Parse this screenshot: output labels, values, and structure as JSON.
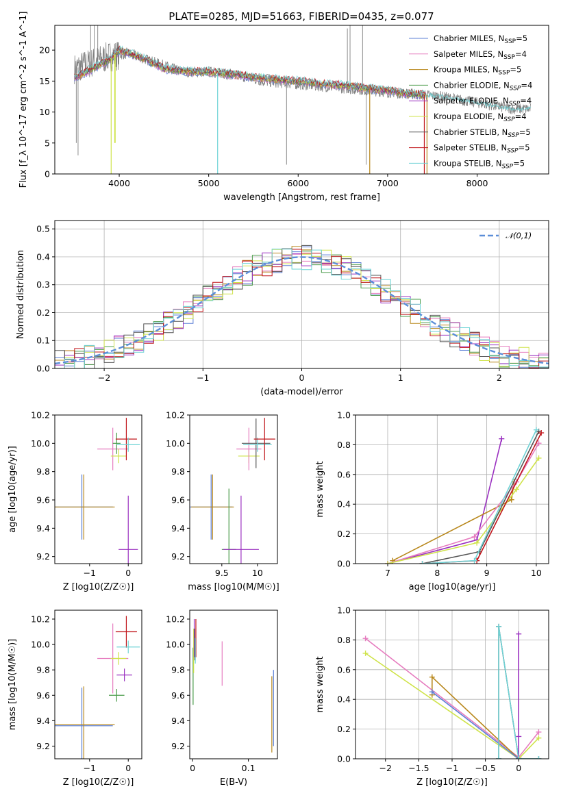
{
  "title": "PLATE=0285, MJD=51663, FIBERID=0435, z=0.077",
  "colors": {
    "Chabrier MILES": "#5b7fd6",
    "Salpeter MILES": "#e67bbf",
    "Kroupa MILES": "#b8871b",
    "Chabrier ELODIE": "#4a9b4a",
    "Salpeter ELODIE": "#9a30c0",
    "Kroupa ELODIE": "#cfe34a",
    "Chabrier STELIB": "#555555",
    "Salpeter STELIB": "#c0141a",
    "Kroupa STELIB": "#6fd3d6",
    "spectrum": "#808080",
    "normal": "#5b8ed8"
  },
  "legend_spectrum": [
    {
      "name": "Chabrier MILES",
      "nssp": "5"
    },
    {
      "name": "Salpeter MILES",
      "nssp": "4"
    },
    {
      "name": "Kroupa MILES",
      "nssp": "5"
    },
    {
      "name": "Chabrier ELODIE",
      "nssp": "4"
    },
    {
      "name": "Salpeter ELODIE",
      "nssp": "4"
    },
    {
      "name": "Kroupa ELODIE",
      "nssp": "4"
    },
    {
      "name": "Chabrier STELIB",
      "nssp": "5"
    },
    {
      "name": "Salpeter STELIB",
      "nssp": "5"
    },
    {
      "name": "Kroupa STELIB",
      "nssp": "5"
    }
  ],
  "chart_data": [
    {
      "id": "spectrum",
      "type": "line",
      "xlabel": "wavelength [Angstrom, rest frame]",
      "ylabel": "Flux [f_λ 10^-17 erg cm^-2 s^-1 A^-1]",
      "xlim": [
        3280,
        8800
      ],
      "ylim": [
        0,
        24
      ],
      "xticks": [
        4000,
        5000,
        6000,
        7000,
        8000
      ],
      "yticks": [
        0,
        5,
        10,
        15,
        20
      ],
      "continuum": {
        "x": [
          3500,
          3700,
          3900,
          4000,
          4100,
          4300,
          4500,
          4800,
          5000,
          5300,
          5600,
          6000,
          6300,
          6600,
          6800,
          7000,
          7200,
          7400
        ],
        "y": [
          15.5,
          17.0,
          18.5,
          20.0,
          19.5,
          18.5,
          17.0,
          16.5,
          16.5,
          16.0,
          15.5,
          15.0,
          14.5,
          14.2,
          13.8,
          13.5,
          13.0,
          12.8
        ]
      },
      "grey_spectrum": {
        "x": [
          3500,
          3700,
          3900,
          4100,
          4400,
          4700,
          5000,
          5300,
          5600,
          6000,
          6400,
          6800,
          7200,
          7600,
          8000,
          8400,
          8600
        ],
        "y": [
          17,
          18,
          19,
          19.5,
          18,
          16.5,
          16.5,
          16,
          15,
          14.5,
          14,
          13.5,
          13,
          12.5,
          11.5,
          10.5,
          10.5
        ]
      },
      "grey_spikes": [
        [
          3520,
          5
        ],
        [
          3540,
          3
        ],
        [
          3680,
          24
        ],
        [
          3720,
          24
        ],
        [
          3760,
          24
        ],
        [
          5870,
          1.5
        ],
        [
          6550,
          23.5
        ],
        [
          6580,
          24
        ],
        [
          6720,
          24
        ],
        [
          6760,
          1.5
        ]
      ],
      "model_dips": [
        [
          3910,
          0
        ],
        [
          3950,
          5
        ],
        [
          3955,
          5
        ],
        [
          5100,
          0
        ],
        [
          6800,
          0
        ],
        [
          7410,
          0
        ],
        [
          7440,
          0
        ]
      ]
    },
    {
      "id": "residual_hist",
      "type": "bar",
      "xlabel": "(data-model)/error",
      "ylabel": "Normed distribution",
      "xlim": [
        -2.5,
        2.5
      ],
      "ylim": [
        0,
        0.53
      ],
      "xticks": [
        -2,
        -1,
        0,
        1,
        2
      ],
      "yticks": [
        0.0,
        0.1,
        0.2,
        0.3,
        0.4,
        0.5
      ],
      "legend": "𝒩(0,1)",
      "bin_width": 0.1
    },
    {
      "id": "age_vs_Z",
      "type": "scatter",
      "xlabel": "Z [log10(Z/Z☉)]",
      "ylabel": "age  [log10(age/yr)]",
      "xlim": [
        -1.9,
        0.35
      ],
      "ylim": [
        9.15,
        10.2
      ],
      "xticks": [
        -1,
        0
      ],
      "yticks": [
        9.2,
        9.4,
        9.6,
        9.8,
        10.0,
        10.2
      ],
      "points": [
        {
          "model": "Chabrier MILES",
          "x": -1.2,
          "y": 9.55,
          "xerr": 1.6,
          "yerr": 0.46
        },
        {
          "model": "Kroupa MILES",
          "x": -1.15,
          "y": 9.55,
          "xerr": 1.6,
          "yerr": 0.46
        },
        {
          "model": "Salpeter MILES",
          "x": -0.4,
          "y": 9.96,
          "xerr": 0.8,
          "yerr": 0.3
        },
        {
          "model": "Kroupa ELODIE",
          "x": -0.25,
          "y": 9.91,
          "xerr": 0.4,
          "yerr": 0.1
        },
        {
          "model": "Chabrier ELODIE",
          "x": -0.3,
          "y": 10.0,
          "xerr": 0.2,
          "yerr": 0.15
        },
        {
          "model": "Salpeter STELIB",
          "x": -0.05,
          "y": 10.03,
          "xerr": 0.55,
          "yerr": 0.3
        },
        {
          "model": "Salpeter ELODIE",
          "x": 0.0,
          "y": 9.25,
          "xerr": 0.5,
          "yerr": 0.76
        },
        {
          "model": "Kroupa STELIB",
          "x": 0.0,
          "y": 9.99,
          "xerr": 0.6,
          "yerr": 0.1
        }
      ]
    },
    {
      "id": "age_vs_mass",
      "type": "scatter",
      "xlabel": "mass [log10(M/M☉)]",
      "ylabel": "",
      "xlim": [
        9.05,
        10.28
      ],
      "ylim": [
        9.15,
        10.2
      ],
      "xticks": [
        9.5,
        10.0
      ],
      "yticks": [
        9.2,
        9.4,
        9.6,
        9.8,
        10.0,
        10.2
      ],
      "points": [
        {
          "model": "Chabrier MILES",
          "x": 9.35,
          "y": 9.55,
          "xerr": 0.6,
          "yerr": 0.46
        },
        {
          "model": "Kroupa MILES",
          "x": 9.37,
          "y": 9.55,
          "xerr": 0.6,
          "yerr": 0.46
        },
        {
          "model": "Chabrier ELODIE",
          "x": 9.6,
          "y": 9.25,
          "xerr": 0.2,
          "yerr": 0.86
        },
        {
          "model": "Salpeter ELODIE",
          "x": 9.77,
          "y": 9.25,
          "xerr": 0.5,
          "yerr": 0.76
        },
        {
          "model": "Kroupa ELODIE",
          "x": 9.88,
          "y": 9.91,
          "xerr": 0.3,
          "yerr": 0.1
        },
        {
          "model": "Salpeter MILES",
          "x": 9.88,
          "y": 9.96,
          "xerr": 0.35,
          "yerr": 0.3
        },
        {
          "model": "Chabrier STELIB",
          "x": 9.98,
          "y": 10.0,
          "xerr": 0.4,
          "yerr": 0.35
        },
        {
          "model": "Kroupa STELIB",
          "x": 10.0,
          "y": 9.99,
          "xerr": 0.4,
          "yerr": 0.1
        },
        {
          "model": "Salpeter STELIB",
          "x": 10.1,
          "y": 10.03,
          "xerr": 0.3,
          "yerr": 0.3
        }
      ]
    },
    {
      "id": "weight_vs_age",
      "type": "line",
      "xlabel": "age  [log10(age/yr)]",
      "ylabel": "mass weight",
      "xlim": [
        6.35,
        10.25
      ],
      "ylim": [
        0,
        1
      ],
      "xticks": [
        7,
        8,
        9,
        10
      ],
      "yticks": [
        0.0,
        0.2,
        0.4,
        0.6,
        0.8,
        1.0
      ],
      "series": [
        {
          "model": "Salpeter ELODIE",
          "x": [
            7.0,
            8.8,
            9.3
          ],
          "y": [
            0.0,
            0.16,
            0.84
          ]
        },
        {
          "model": "Kroupa MILES",
          "x": [
            7.1,
            9.5,
            9.55
          ],
          "y": [
            0.02,
            0.43,
            0.55
          ]
        },
        {
          "model": "Salpeter MILES",
          "x": [
            7.0,
            8.75,
            9.6,
            10.05
          ],
          "y": [
            0.0,
            0.18,
            0.55,
            0.81
          ]
        },
        {
          "model": "Kroupa ELODIE",
          "x": [
            7.0,
            8.8,
            9.6,
            10.05
          ],
          "y": [
            0.0,
            0.14,
            0.5,
            0.71
          ]
        },
        {
          "model": "Chabrier STELIB",
          "x": [
            7.7,
            8.85,
            10.05
          ],
          "y": [
            0.0,
            0.08,
            0.89
          ]
        },
        {
          "model": "Salpeter STELIB",
          "x": [
            7.7,
            8.8,
            10.1
          ],
          "y": [
            0.0,
            0.02,
            0.88
          ]
        },
        {
          "model": "Kroupa STELIB",
          "x": [
            7.7,
            8.75,
            10.0
          ],
          "y": [
            0.0,
            0.02,
            0.9
          ]
        }
      ]
    },
    {
      "id": "mass_vs_Z",
      "type": "scatter",
      "xlabel": "Z [log10(Z/Z☉)]",
      "ylabel": "mass [log10(M/M☉)]",
      "xlim": [
        -1.9,
        0.35
      ],
      "ylim": [
        9.1,
        10.27
      ],
      "xticks": [
        -1,
        0
      ],
      "yticks": [
        9.2,
        9.4,
        9.6,
        9.8,
        10.0,
        10.2
      ],
      "points": [
        {
          "model": "Chabrier MILES",
          "x": -1.2,
          "y": 9.36,
          "xerr": 1.6,
          "yerr": 0.6
        },
        {
          "model": "Kroupa MILES",
          "x": -1.15,
          "y": 9.37,
          "xerr": 1.6,
          "yerr": 0.6
        },
        {
          "model": "Salpeter MILES",
          "x": -0.4,
          "y": 9.89,
          "xerr": 0.8,
          "yerr": 0.55
        },
        {
          "model": "Kroupa ELODIE",
          "x": -0.25,
          "y": 9.89,
          "xerr": 0.4,
          "yerr": 0.1
        },
        {
          "model": "Chabrier ELODIE",
          "x": -0.3,
          "y": 9.6,
          "xerr": 0.4,
          "yerr": 0.1
        },
        {
          "model": "Salpeter STELIB",
          "x": -0.05,
          "y": 10.1,
          "xerr": 0.55,
          "yerr": 0.25
        },
        {
          "model": "Salpeter ELODIE",
          "x": -0.1,
          "y": 9.76,
          "xerr": 0.4,
          "yerr": 0.1
        },
        {
          "model": "Kroupa STELIB",
          "x": 0.0,
          "y": 9.98,
          "xerr": 0.6,
          "yerr": 0.1
        }
      ]
    },
    {
      "id": "mass_vs_ebv",
      "type": "scatter",
      "xlabel": "E(B-V)",
      "ylabel": "",
      "xlim": [
        -0.005,
        0.152
      ],
      "ylim": [
        9.1,
        10.27
      ],
      "xticks": [
        0.0,
        0.1
      ],
      "yticks": [
        9.2,
        9.4,
        9.6,
        9.8,
        10.0,
        10.2
      ],
      "points": [
        {
          "model": "Chabrier ELODIE",
          "x": 0.001,
          "y": 9.75,
          "yerr": 0.45
        },
        {
          "model": "Kroupa ELODIE",
          "x": 0.002,
          "y": 9.95,
          "yerr": 0.35
        },
        {
          "model": "Salpeter ELODIE",
          "x": 0.003,
          "y": 10.05,
          "yerr": 0.3
        },
        {
          "model": "Chabrier STELIB",
          "x": 0.004,
          "y": 10.0,
          "yerr": 0.25
        },
        {
          "model": "Salpeter STELIB",
          "x": 0.006,
          "y": 10.05,
          "yerr": 0.3
        },
        {
          "model": "Kroupa STELIB",
          "x": 0.005,
          "y": 9.95,
          "yerr": 0.2
        },
        {
          "model": "Salpeter MILES",
          "x": 0.053,
          "y": 9.85,
          "yerr": 0.35
        },
        {
          "model": "Kroupa MILES",
          "x": 0.142,
          "y": 9.45,
          "yerr": 0.6
        },
        {
          "model": "Chabrier MILES",
          "x": 0.145,
          "y": 9.5,
          "yerr": 0.6
        }
      ]
    },
    {
      "id": "weight_vs_Z",
      "type": "line",
      "xlabel": "Z [log10(Z/Z☉)]",
      "ylabel": "mass weight",
      "xlim": [
        -2.45,
        0.45
      ],
      "ylim": [
        0,
        1
      ],
      "xticks": [
        -2.0,
        -1.5,
        -1.0,
        -0.5,
        0.0
      ],
      "yticks": [
        0.0,
        0.2,
        0.4,
        0.6,
        0.8,
        1.0
      ],
      "series": [
        {
          "model": "Salpeter MILES",
          "x": [
            -2.3,
            0.0,
            0.3
          ],
          "y": [
            0.81,
            0.01,
            0.18
          ]
        },
        {
          "model": "Kroupa ELODIE",
          "x": [
            -2.3,
            0.0,
            0.3
          ],
          "y": [
            0.71,
            0.0,
            0.14
          ]
        },
        {
          "model": "Kroupa MILES",
          "x": [
            -1.3,
            -1.3,
            0.0
          ],
          "y": [
            0.43,
            0.55,
            0.0
          ]
        },
        {
          "model": "Chabrier MILES",
          "x": [
            -1.3,
            0.0
          ],
          "y": [
            0.45,
            0.0
          ]
        },
        {
          "model": "Salpeter ELODIE",
          "x": [
            0.0,
            0.0,
            0.0
          ],
          "y": [
            0.0,
            0.84,
            0.15
          ]
        },
        {
          "model": "Chabrier STELIB",
          "x": [
            -0.3,
            -0.3,
            0.0,
            0.3
          ],
          "y": [
            0.0,
            0.89,
            0.0,
            0.0
          ]
        },
        {
          "model": "Kroupa STELIB",
          "x": [
            -0.3,
            -0.3,
            0.0,
            0.3
          ],
          "y": [
            0.0,
            0.89,
            0.0,
            0.0
          ]
        }
      ]
    }
  ]
}
